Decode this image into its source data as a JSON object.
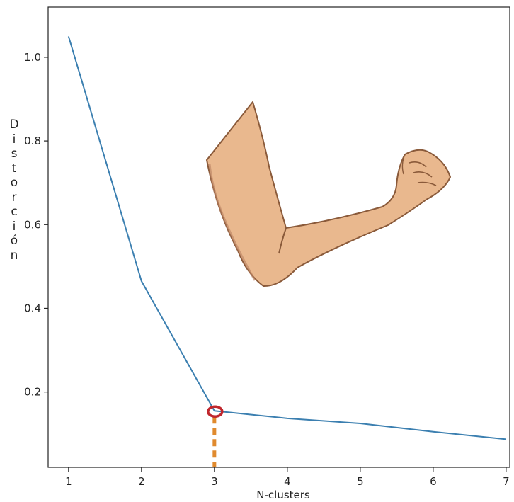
{
  "chart_data": {
    "type": "line",
    "xlabel": "N-clusters",
    "ylabel": "Distorción",
    "x": [
      1,
      2,
      3,
      4,
      5,
      6,
      7
    ],
    "series": [
      {
        "values": [
          1.05,
          0.465,
          0.155,
          0.137,
          0.125,
          0.105,
          0.087
        ],
        "color": "#3b7fb0"
      }
    ],
    "xticks": [
      "1",
      "2",
      "3",
      "4",
      "5",
      "6",
      "7"
    ],
    "yticks": [
      "0.2",
      "0.4",
      "0.6",
      "0.8",
      "1.0"
    ],
    "xlim": [
      0.72,
      7.05
    ],
    "ylim": [
      0.02,
      1.12
    ],
    "grid": false,
    "annotations": [
      {
        "kind": "elbow-marker",
        "x": 3,
        "y": 0.155,
        "color": "#c0272d"
      },
      {
        "kind": "dashed-drop-line",
        "x": 3,
        "from_y": 0.155,
        "to_y": 0.02,
        "color": "#e08a2e"
      },
      {
        "kind": "flexed-arm-illustration",
        "meaning": "elbow"
      }
    ]
  }
}
